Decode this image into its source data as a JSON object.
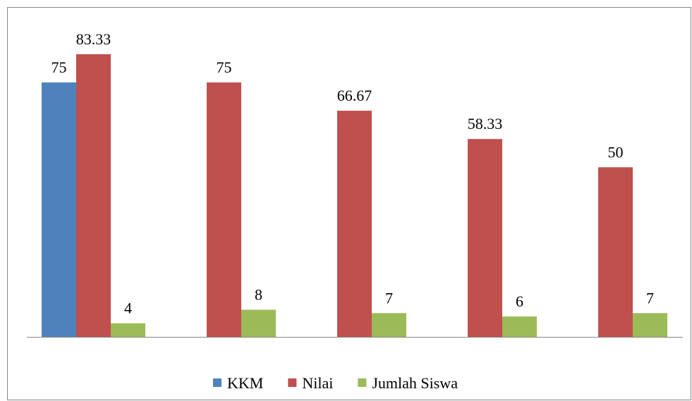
{
  "chart_data": {
    "type": "bar",
    "categories": [
      null,
      null,
      null,
      null,
      null
    ],
    "series": [
      {
        "name": "KKM",
        "color": "#4f81bd",
        "values": [
          75,
          null,
          null,
          null,
          null
        ]
      },
      {
        "name": "Nilai",
        "color": "#c0504d",
        "values": [
          83.33,
          75,
          66.67,
          58.33,
          50
        ]
      },
      {
        "name": "Jumlah Siswa",
        "color": "#9bbb59",
        "values": [
          4,
          8,
          7,
          6,
          7
        ]
      }
    ],
    "legend": "bottom"
  }
}
